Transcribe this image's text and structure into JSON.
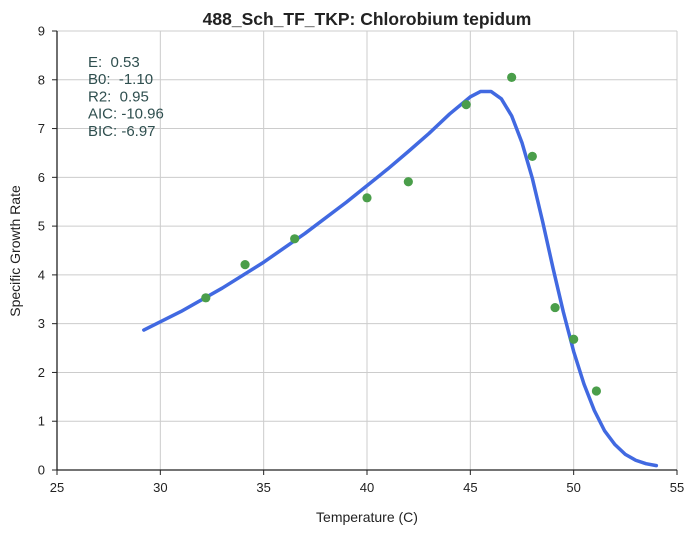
{
  "chart_data": {
    "type": "scatter",
    "title": "488_Sch_TF_TKP: Chlorobium tepidum",
    "xlabel": "Temperature (C)",
    "ylabel": "Specific Growth Rate",
    "xlim": [
      25,
      55
    ],
    "ylim": [
      0,
      9
    ],
    "xticks": [
      "25",
      "30",
      "35",
      "40",
      "45",
      "50",
      "55"
    ],
    "yticks": [
      "0",
      "1",
      "2",
      "3",
      "4",
      "5",
      "6",
      "7",
      "8",
      "9"
    ],
    "grid": true,
    "series": [
      {
        "kind": "points",
        "color": "#4a9e4a",
        "x": [
          32.2,
          34.1,
          36.5,
          40.0,
          42.0,
          44.8,
          47.0,
          48.0,
          49.1,
          50.0,
          51.1
        ],
        "y": [
          3.53,
          4.21,
          4.74,
          5.58,
          5.91,
          7.49,
          8.05,
          6.43,
          3.33,
          2.68,
          1.62
        ]
      },
      {
        "kind": "fitted-curve",
        "color": "#4169e1",
        "x": [
          29.2,
          31.0,
          33.0,
          35.0,
          37.0,
          39.0,
          41.0,
          42.0,
          43.0,
          44.0,
          45.0,
          45.5,
          46.0,
          46.5,
          47.0,
          47.5,
          48.0,
          48.5,
          49.0,
          49.5,
          50.0,
          50.5,
          51.0,
          51.5,
          52.0,
          52.5,
          53.0,
          53.5,
          54.0
        ],
        "y": [
          2.87,
          3.25,
          3.73,
          4.26,
          4.85,
          5.49,
          6.17,
          6.53,
          6.9,
          7.3,
          7.65,
          7.76,
          7.76,
          7.61,
          7.26,
          6.71,
          5.98,
          5.09,
          4.14,
          3.24,
          2.43,
          1.76,
          1.22,
          0.8,
          0.52,
          0.32,
          0.2,
          0.13,
          0.09
        ]
      }
    ],
    "annotations": [
      "E:  0.53",
      "B0:  -1.10",
      "R2:  0.95",
      "AIC: -10.96",
      "BIC: -6.97"
    ],
    "annotation_color": "#2f4f4f",
    "colors": {
      "grid": "#cccccc",
      "axis": "#222222"
    }
  }
}
